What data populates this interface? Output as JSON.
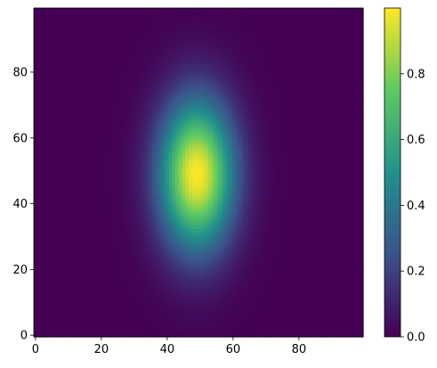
{
  "chart_data": {
    "type": "heatmap",
    "title": "",
    "xlabel": "",
    "ylabel": "",
    "origin": "lower",
    "grid_size": [
      100,
      100
    ],
    "xlim": [
      -0.5,
      99.5
    ],
    "ylim": [
      -0.5,
      99.5
    ],
    "x_ticks": [
      0,
      20,
      40,
      60,
      80
    ],
    "y_ticks": [
      0,
      20,
      40,
      60,
      80
    ],
    "x_tick_labels": [
      "0",
      "20",
      "40",
      "60",
      "80"
    ],
    "y_tick_labels": [
      "0",
      "20",
      "40",
      "60",
      "80"
    ],
    "function": "gaussian",
    "center": [
      49,
      49
    ],
    "sigma_x": 8,
    "sigma_y": 16,
    "peak_value": 1.0,
    "colormap": "viridis",
    "colormap_stops": [
      "#440154",
      "#3b528b",
      "#21918c",
      "#5ec962",
      "#fde725"
    ],
    "colorbar": {
      "range": [
        0.0,
        1.0
      ],
      "ticks": [
        0.0,
        0.2,
        0.4,
        0.6,
        0.8
      ],
      "tick_labels": [
        "0.0",
        "0.2",
        "0.4",
        "0.6",
        "0.8"
      ]
    }
  }
}
